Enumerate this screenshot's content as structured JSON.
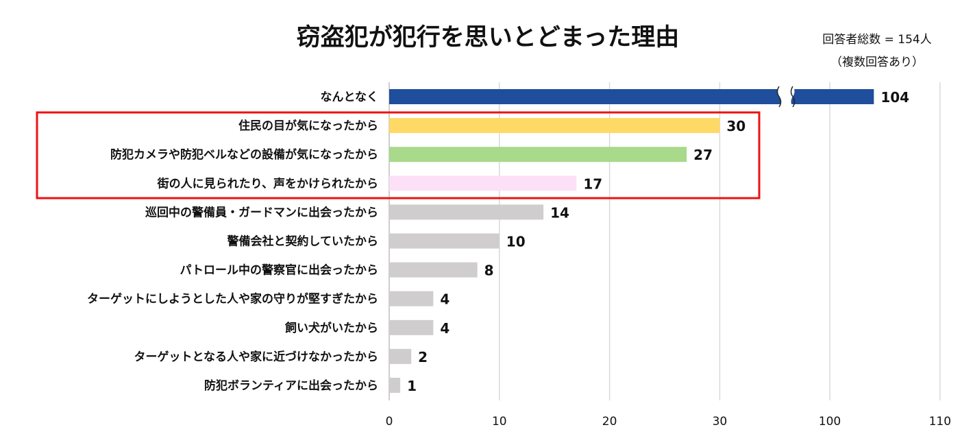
{
  "chart_data": {
    "type": "bar",
    "orientation": "horizontal",
    "title": "窃盗犯が犯行を思いとどまった理由",
    "annotations": [
      "回答者総数 = 154人",
      "（複数回答あり）"
    ],
    "categories": [
      "なんとなく",
      "住民の目が気になったから",
      "防犯カメラや防犯ベルなどの設備が気になったから",
      "街の人に見られたり、声をかけられたから",
      "巡回中の警備員・ガードマンに出会ったから",
      "警備会社と契約していたから",
      "パトロール中の警察官に出会ったから",
      "ターゲットにしようとした人や家の守りが堅すぎたから",
      "飼い犬がいたから",
      "ターゲットとなる人や家に近づけなかったから",
      "防犯ボランティアに出会ったから"
    ],
    "values": [
      104,
      30,
      27,
      17,
      14,
      10,
      8,
      4,
      4,
      2,
      1
    ],
    "colors": [
      "#1f4e9c",
      "#ffd966",
      "#a9d98b",
      "#fbe0f7",
      "#cfcdcd",
      "#cfcdcd",
      "#cfcdcd",
      "#cfcdcd",
      "#cfcdcd",
      "#cfcdcd",
      "#cfcdcd"
    ],
    "x_ticks": [
      0,
      10,
      20,
      30,
      100,
      110
    ],
    "axis_break": [
      30,
      100
    ],
    "xlim": [
      0,
      110
    ],
    "grid": true,
    "highlight_box": {
      "categories": [
        "住民の目が気になったから",
        "防犯カメラや防犯ベルなどの設備が気になったから",
        "街の人に見られたり、声をかけられたから"
      ],
      "color": "#ee1111"
    }
  }
}
